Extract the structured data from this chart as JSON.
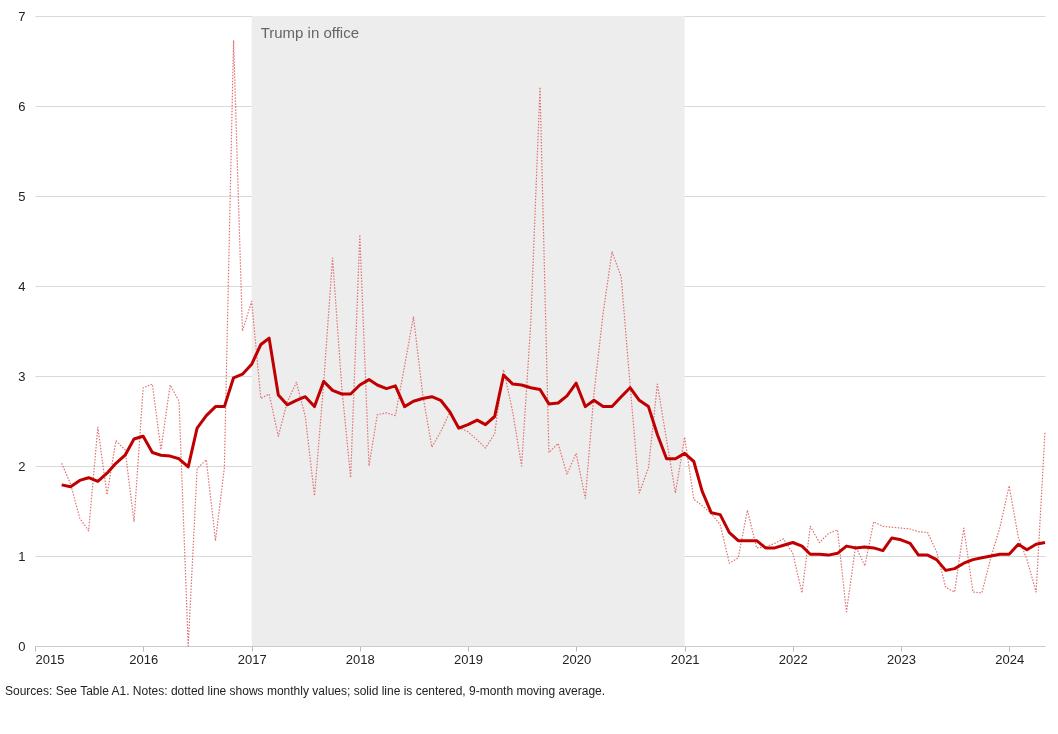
{
  "chart_data": {
    "type": "line",
    "x": [
      "2015-04",
      "2015-05",
      "2015-06",
      "2015-07",
      "2015-08",
      "2015-09",
      "2015-10",
      "2015-11",
      "2015-12",
      "2016-01",
      "2016-02",
      "2016-03",
      "2016-04",
      "2016-05",
      "2016-06",
      "2016-07",
      "2016-08",
      "2016-09",
      "2016-10",
      "2016-11",
      "2016-12",
      "2017-01",
      "2017-02",
      "2017-03",
      "2017-04",
      "2017-05",
      "2017-06",
      "2017-07",
      "2017-08",
      "2017-09",
      "2017-10",
      "2017-11",
      "2017-12",
      "2018-01",
      "2018-02",
      "2018-03",
      "2018-04",
      "2018-05",
      "2018-06",
      "2018-07",
      "2018-08",
      "2018-09",
      "2018-10",
      "2018-11",
      "2018-12",
      "2019-01",
      "2019-02",
      "2019-03",
      "2019-04",
      "2019-05",
      "2019-06",
      "2019-07",
      "2019-08",
      "2019-09",
      "2019-10",
      "2019-11",
      "2019-12",
      "2020-01",
      "2020-02",
      "2020-03",
      "2020-04",
      "2020-05",
      "2020-06",
      "2020-07",
      "2020-08",
      "2020-09",
      "2020-10",
      "2020-11",
      "2020-12",
      "2021-01",
      "2021-02",
      "2021-03",
      "2021-04",
      "2021-05",
      "2021-06",
      "2021-07",
      "2021-08",
      "2021-09",
      "2021-10",
      "2021-11",
      "2021-12",
      "2022-01",
      "2022-02",
      "2022-03",
      "2022-04",
      "2022-05",
      "2022-06",
      "2022-07",
      "2022-08",
      "2022-09",
      "2022-10",
      "2022-11",
      "2022-12",
      "2023-01",
      "2023-02",
      "2023-03",
      "2023-04",
      "2023-05",
      "2023-06",
      "2023-07",
      "2023-08",
      "2023-09",
      "2023-10",
      "2023-11",
      "2023-12",
      "2024-01",
      "2024-02",
      "2024-03",
      "2024-04",
      "2024-05"
    ],
    "series": [
      {
        "color": "#e07070",
        "line_style": "dotted",
        "values": [
          2.03,
          1.8,
          1.42,
          1.28,
          2.43,
          1.68,
          2.28,
          2.18,
          1.38,
          2.87,
          2.91,
          2.18,
          2.9,
          2.72,
          0.0,
          1.97,
          2.07,
          1.17,
          1.98,
          6.73,
          3.5,
          3.83,
          2.75,
          2.8,
          2.33,
          2.71,
          2.93,
          2.55,
          1.67,
          2.92,
          4.31,
          2.88,
          1.87,
          4.57,
          2.0,
          2.57,
          2.59,
          2.56,
          3.11,
          3.66,
          2.8,
          2.21,
          2.38,
          2.6,
          2.43,
          2.38,
          2.29,
          2.2,
          2.36,
          3.07,
          2.6,
          2.0,
          3.6,
          6.21,
          2.15,
          2.25,
          1.91,
          2.14,
          1.64,
          2.8,
          3.7,
          4.38,
          4.1,
          2.9,
          1.7,
          1.98,
          2.91,
          2.29,
          1.7,
          2.32,
          1.63,
          1.56,
          1.47,
          1.35,
          0.92,
          0.98,
          1.51,
          1.09,
          1.1,
          1.14,
          1.19,
          1.03,
          0.59,
          1.33,
          1.15,
          1.25,
          1.29,
          0.38,
          1.11,
          0.89,
          1.38,
          1.33,
          1.32,
          1.31,
          1.3,
          1.27,
          1.26,
          1.05,
          0.65,
          0.6,
          1.31,
          0.6,
          0.59,
          0.99,
          1.32,
          1.78,
          1.21,
          0.96,
          0.6,
          2.38
        ]
      },
      {
        "color": "#c00000",
        "line_style": "solid",
        "values": [
          1.79,
          1.77,
          1.84,
          1.87,
          1.83,
          1.92,
          2.03,
          2.12,
          2.3,
          2.33,
          2.15,
          2.12,
          2.11,
          2.08,
          1.99,
          2.42,
          2.56,
          2.66,
          2.66,
          2.98,
          3.02,
          3.13,
          3.35,
          3.42,
          2.79,
          2.68,
          2.73,
          2.77,
          2.66,
          2.94,
          2.84,
          2.8,
          2.8,
          2.9,
          2.96,
          2.9,
          2.86,
          2.89,
          2.66,
          2.72,
          2.75,
          2.77,
          2.73,
          2.6,
          2.42,
          2.46,
          2.51,
          2.46,
          2.55,
          3.01,
          2.91,
          2.9,
          2.87,
          2.85,
          2.69,
          2.7,
          2.78,
          2.92,
          2.66,
          2.73,
          2.66,
          2.66,
          2.77,
          2.87,
          2.73,
          2.66,
          2.35,
          2.08,
          2.08,
          2.14,
          2.05,
          1.72,
          1.48,
          1.46,
          1.26,
          1.17,
          1.17,
          1.17,
          1.09,
          1.09,
          1.12,
          1.15,
          1.11,
          1.02,
          1.02,
          1.01,
          1.03,
          1.11,
          1.09,
          1.1,
          1.09,
          1.06,
          1.2,
          1.18,
          1.14,
          1.01,
          1.01,
          0.96,
          0.84,
          0.86,
          0.92,
          0.96,
          0.98,
          1.0,
          1.02,
          1.02,
          1.13,
          1.07,
          1.13,
          1.15
        ]
      }
    ],
    "xlim": [
      "2015-01",
      "2024-05"
    ],
    "xticks": [
      "2015",
      "2016",
      "2017",
      "2018",
      "2019",
      "2020",
      "2021",
      "2022",
      "2023",
      "2024"
    ],
    "ylim": [
      0,
      7
    ],
    "yticks": [
      0,
      1,
      2,
      3,
      4,
      5,
      6,
      7
    ],
    "grid": "y",
    "bands": [
      {
        "axis": "x",
        "from": "2017-01",
        "to": "2021-01",
        "label": "Trump in office",
        "color": "#ededed"
      }
    ],
    "annotations": [
      "Sources: See Table A1. Notes: dotted line shows monthly values; solid line is centered, 9-month moving average."
    ]
  }
}
